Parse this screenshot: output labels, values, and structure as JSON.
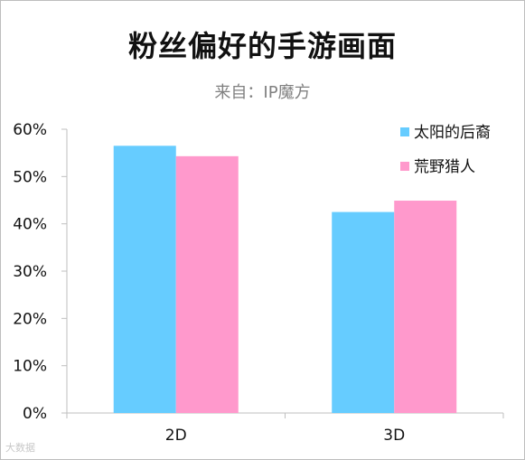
{
  "title": "粉丝偏好的手游画面",
  "subtitle": "来自：IP魔方",
  "watermark": "大数据",
  "colors": {
    "series1": "#66ccff",
    "series2": "#ff99cc",
    "axis": "#bfbfbf"
  },
  "chart_data": {
    "type": "bar",
    "categories": [
      "2D",
      "3D"
    ],
    "series": [
      {
        "name": "太阳的后裔",
        "values": [
          56.5,
          42.5
        ]
      },
      {
        "name": "荒野猎人",
        "values": [
          54.3,
          44.9
        ]
      }
    ],
    "ylim": [
      0,
      60
    ],
    "yticks": [
      "0%",
      "10%",
      "20%",
      "30%",
      "40%",
      "50%",
      "60%"
    ],
    "grid": false,
    "legend": "top-right"
  }
}
